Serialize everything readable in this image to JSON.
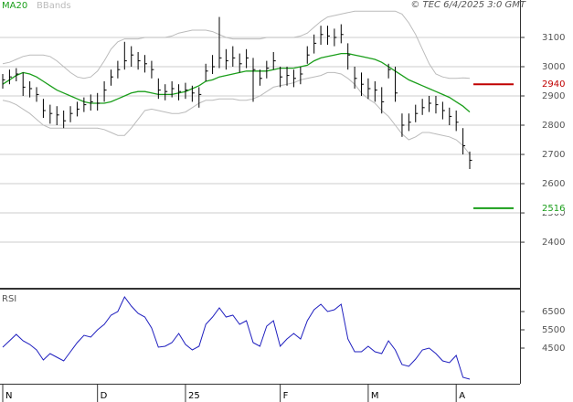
{
  "chart_data": [
    {
      "type": "hlc",
      "source": "© TEC 6/4/2025 3:0 GMT",
      "categories": [
        "N",
        null,
        null,
        null,
        null,
        null,
        null,
        null,
        null,
        null,
        null,
        null,
        null,
        null,
        "D",
        null,
        null,
        null,
        null,
        null,
        null,
        null,
        null,
        null,
        null,
        null,
        null,
        "25",
        null,
        null,
        null,
        null,
        null,
        null,
        null,
        null,
        null,
        null,
        null,
        null,
        null,
        "F",
        null,
        null,
        null,
        null,
        null,
        null,
        null,
        null,
        null,
        null,
        null,
        null,
        "M",
        null,
        null,
        null,
        null,
        null,
        null,
        null,
        null,
        null,
        null,
        null,
        null,
        "A",
        null,
        null
      ],
      "high": [
        2975,
        2990,
        2995,
        2980,
        2950,
        2930,
        2890,
        2870,
        2865,
        2850,
        2865,
        2880,
        2895,
        2905,
        2910,
        2950,
        2990,
        3020,
        3085,
        3070,
        3050,
        3040,
        3020,
        2960,
        2940,
        2950,
        2940,
        2945,
        2935,
        2930,
        3010,
        3040,
        3170,
        3060,
        3070,
        3045,
        3060,
        3030,
        2990,
        3020,
        3050,
        3000,
        3000,
        2990,
        3000,
        3070,
        3110,
        3140,
        3140,
        3130,
        3145,
        3080,
        3000,
        2980,
        2960,
        2950,
        2930,
        3010,
        3000,
        2840,
        2840,
        2870,
        2890,
        2900,
        2900,
        2880,
        2860,
        2850,
        2790,
        2710
      ],
      "low": [
        2925,
        2940,
        2950,
        2900,
        2895,
        2880,
        2825,
        2805,
        2800,
        2790,
        2810,
        2830,
        2845,
        2850,
        2850,
        2880,
        2935,
        2960,
        2990,
        3000,
        2990,
        2980,
        2960,
        2890,
        2885,
        2895,
        2885,
        2890,
        2880,
        2860,
        2950,
        2975,
        2995,
        2990,
        3000,
        2980,
        2995,
        2880,
        2935,
        2960,
        2990,
        2930,
        2935,
        2930,
        2940,
        3010,
        3045,
        3075,
        3075,
        3070,
        3080,
        2990,
        2925,
        2900,
        2890,
        2880,
        2840,
        2960,
        2880,
        2760,
        2780,
        2810,
        2835,
        2845,
        2840,
        2820,
        2800,
        2780,
        2700,
        2650
      ],
      "close": [
        2955,
        2965,
        2975,
        2930,
        2925,
        2905,
        2850,
        2840,
        2835,
        2815,
        2840,
        2855,
        2870,
        2880,
        2875,
        2920,
        2965,
        2990,
        3020,
        3040,
        3020,
        3010,
        2990,
        2920,
        2915,
        2925,
        2915,
        2920,
        2910,
        2905,
        2985,
        3000,
        3030,
        3020,
        3030,
        3010,
        3030,
        2990,
        2960,
        2995,
        3020,
        2965,
        2970,
        2960,
        2975,
        3040,
        3080,
        3110,
        3105,
        3100,
        3110,
        3040,
        2960,
        2940,
        2925,
        2920,
        2880,
        2990,
        2910,
        2800,
        2810,
        2840,
        2860,
        2875,
        2870,
        2850,
        2830,
        2810,
        2730,
        2680
      ],
      "bar_color": "#000000",
      "series": [
        {
          "name": "MA20",
          "color": "#1a9e1a",
          "values": [
            2940,
            2955,
            2970,
            2980,
            2975,
            2965,
            2950,
            2935,
            2920,
            2910,
            2900,
            2890,
            2880,
            2875,
            2875,
            2875,
            2880,
            2890,
            2900,
            2910,
            2915,
            2915,
            2910,
            2905,
            2905,
            2905,
            2910,
            2915,
            2925,
            2935,
            2950,
            2955,
            2965,
            2970,
            2975,
            2980,
            2985,
            2985,
            2985,
            2985,
            2990,
            2995,
            2995,
            2995,
            3000,
            3005,
            3020,
            3030,
            3035,
            3040,
            3045,
            3045,
            3040,
            3035,
            3030,
            3025,
            3015,
            3000,
            2985,
            2970,
            2955,
            2945,
            2935,
            2925,
            2915,
            2905,
            2895,
            2880,
            2865,
            2845
          ]
        },
        {
          "name": "BBands",
          "color": "#bbbbbb",
          "upper": [
            3010,
            3015,
            3025,
            3035,
            3040,
            3040,
            3040,
            3035,
            3020,
            3000,
            2980,
            2965,
            2960,
            2965,
            2985,
            3020,
            3060,
            3085,
            3095,
            3095,
            3095,
            3100,
            3100,
            3100,
            3100,
            3105,
            3115,
            3120,
            3125,
            3125,
            3125,
            3120,
            3110,
            3100,
            3095,
            3095,
            3095,
            3095,
            3095,
            3100,
            3100,
            3100,
            3100,
            3100,
            3105,
            3115,
            3135,
            3155,
            3170,
            3175,
            3180,
            3185,
            3190,
            3190,
            3190,
            3190,
            3190,
            3190,
            3190,
            3180,
            3150,
            3110,
            3060,
            3010,
            2975,
            2965,
            2960,
            2960,
            2962,
            2960
          ],
          "lower": [
            2885,
            2880,
            2870,
            2855,
            2840,
            2820,
            2800,
            2790,
            2790,
            2790,
            2790,
            2790,
            2790,
            2790,
            2790,
            2785,
            2775,
            2765,
            2765,
            2790,
            2820,
            2850,
            2855,
            2850,
            2845,
            2840,
            2840,
            2845,
            2860,
            2875,
            2885,
            2885,
            2890,
            2890,
            2890,
            2885,
            2885,
            2890,
            2900,
            2915,
            2930,
            2935,
            2940,
            2945,
            2955,
            2960,
            2965,
            2970,
            2980,
            2980,
            2975,
            2960,
            2940,
            2910,
            2890,
            2875,
            2850,
            2830,
            2800,
            2770,
            2750,
            2760,
            2775,
            2775,
            2770,
            2765,
            2760,
            2750,
            2730,
            2700
          ]
        }
      ],
      "levels": [
        {
          "value": 2940,
          "color": "#c00000"
        },
        {
          "value": 2516,
          "color": "#1a9e1a"
        }
      ],
      "ylim": [
        2244,
        3228
      ],
      "yticks": [
        2400,
        2500,
        2600,
        2700,
        2800,
        2900,
        3000,
        3100
      ],
      "grid": true
    },
    {
      "type": "line",
      "title": "RSI",
      "values": [
        4550,
        4900,
        5250,
        4900,
        4700,
        4400,
        3850,
        4200,
        4000,
        3800,
        4300,
        4800,
        5200,
        5100,
        5500,
        5800,
        6300,
        6500,
        7300,
        6800,
        6400,
        6200,
        5600,
        4550,
        4600,
        4800,
        5300,
        4700,
        4400,
        4600,
        5800,
        6200,
        6700,
        6200,
        6300,
        5800,
        6000,
        4800,
        4600,
        5700,
        6000,
        4600,
        5000,
        5300,
        5000,
        6000,
        6600,
        6900,
        6500,
        6600,
        6900,
        5000,
        4300,
        4300,
        4600,
        4300,
        4200,
        4900,
        4400,
        3600,
        3500,
        3900,
        4400,
        4500,
        4200,
        3800,
        3700,
        4100,
        2900,
        2800
      ],
      "color": "#1f1fbf",
      "ylim": [
        2550,
        7650
      ],
      "yticks": [
        4500,
        5500,
        6500
      ],
      "grid": false
    }
  ]
}
